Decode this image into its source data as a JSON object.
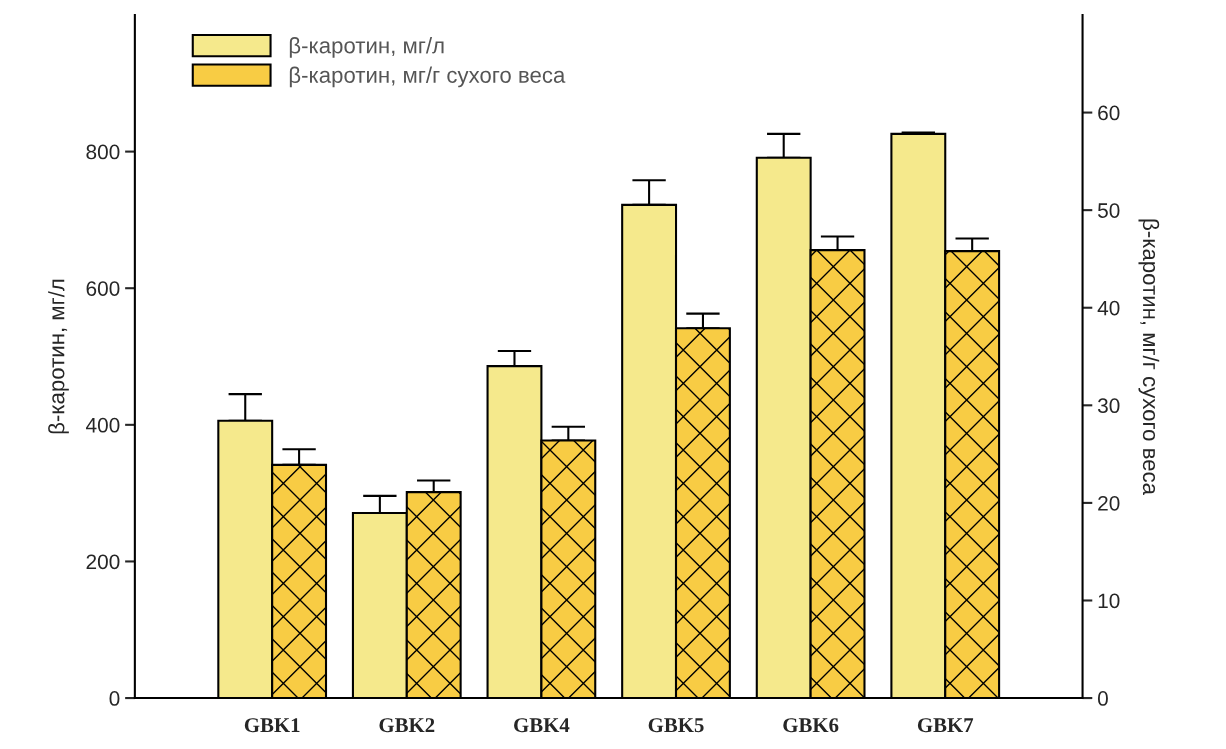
{
  "chart_data": {
    "type": "bar",
    "ylabel": "β-каротин, мг/л",
    "y2label": "β-каротин, мг/г сухого веса",
    "categories": [
      "GBK1",
      "GBK2",
      "GBK4",
      "GBK5",
      "GBK6",
      "GBK7"
    ],
    "series": [
      {
        "name": "β-каротин, мг/л",
        "color": "#f5e98c",
        "values": [
          406,
          271,
          486,
          722,
          791,
          826
        ],
        "errors": [
          [
            406,
            445
          ],
          [
            271,
            296
          ],
          [
            486,
            508
          ],
          [
            722,
            758
          ],
          [
            791,
            826
          ],
          [
            826,
            828
          ]
        ]
      },
      {
        "name": "β-каротин, мг/г сухого веса",
        "color": "#f8cc44",
        "axis": "y2",
        "values": [
          23.9,
          21.1,
          26.4,
          37.9,
          45.9,
          45.8
        ],
        "errors": [
          [
            23.9,
            25.5
          ],
          [
            21.1,
            22.3
          ],
          [
            26.4,
            27.8
          ],
          [
            37.9,
            39.4
          ],
          [
            45.9,
            47.3
          ],
          [
            45.8,
            47.1
          ]
        ]
      }
    ],
    "ylim": [
      0,
      1000
    ],
    "yticks": [
      0,
      200,
      400,
      600,
      800
    ],
    "y2lim": [
      0,
      70
    ],
    "y2ticks": [
      0,
      10,
      20,
      30,
      40,
      50,
      60
    ],
    "grid": false,
    "legend": "top left"
  }
}
